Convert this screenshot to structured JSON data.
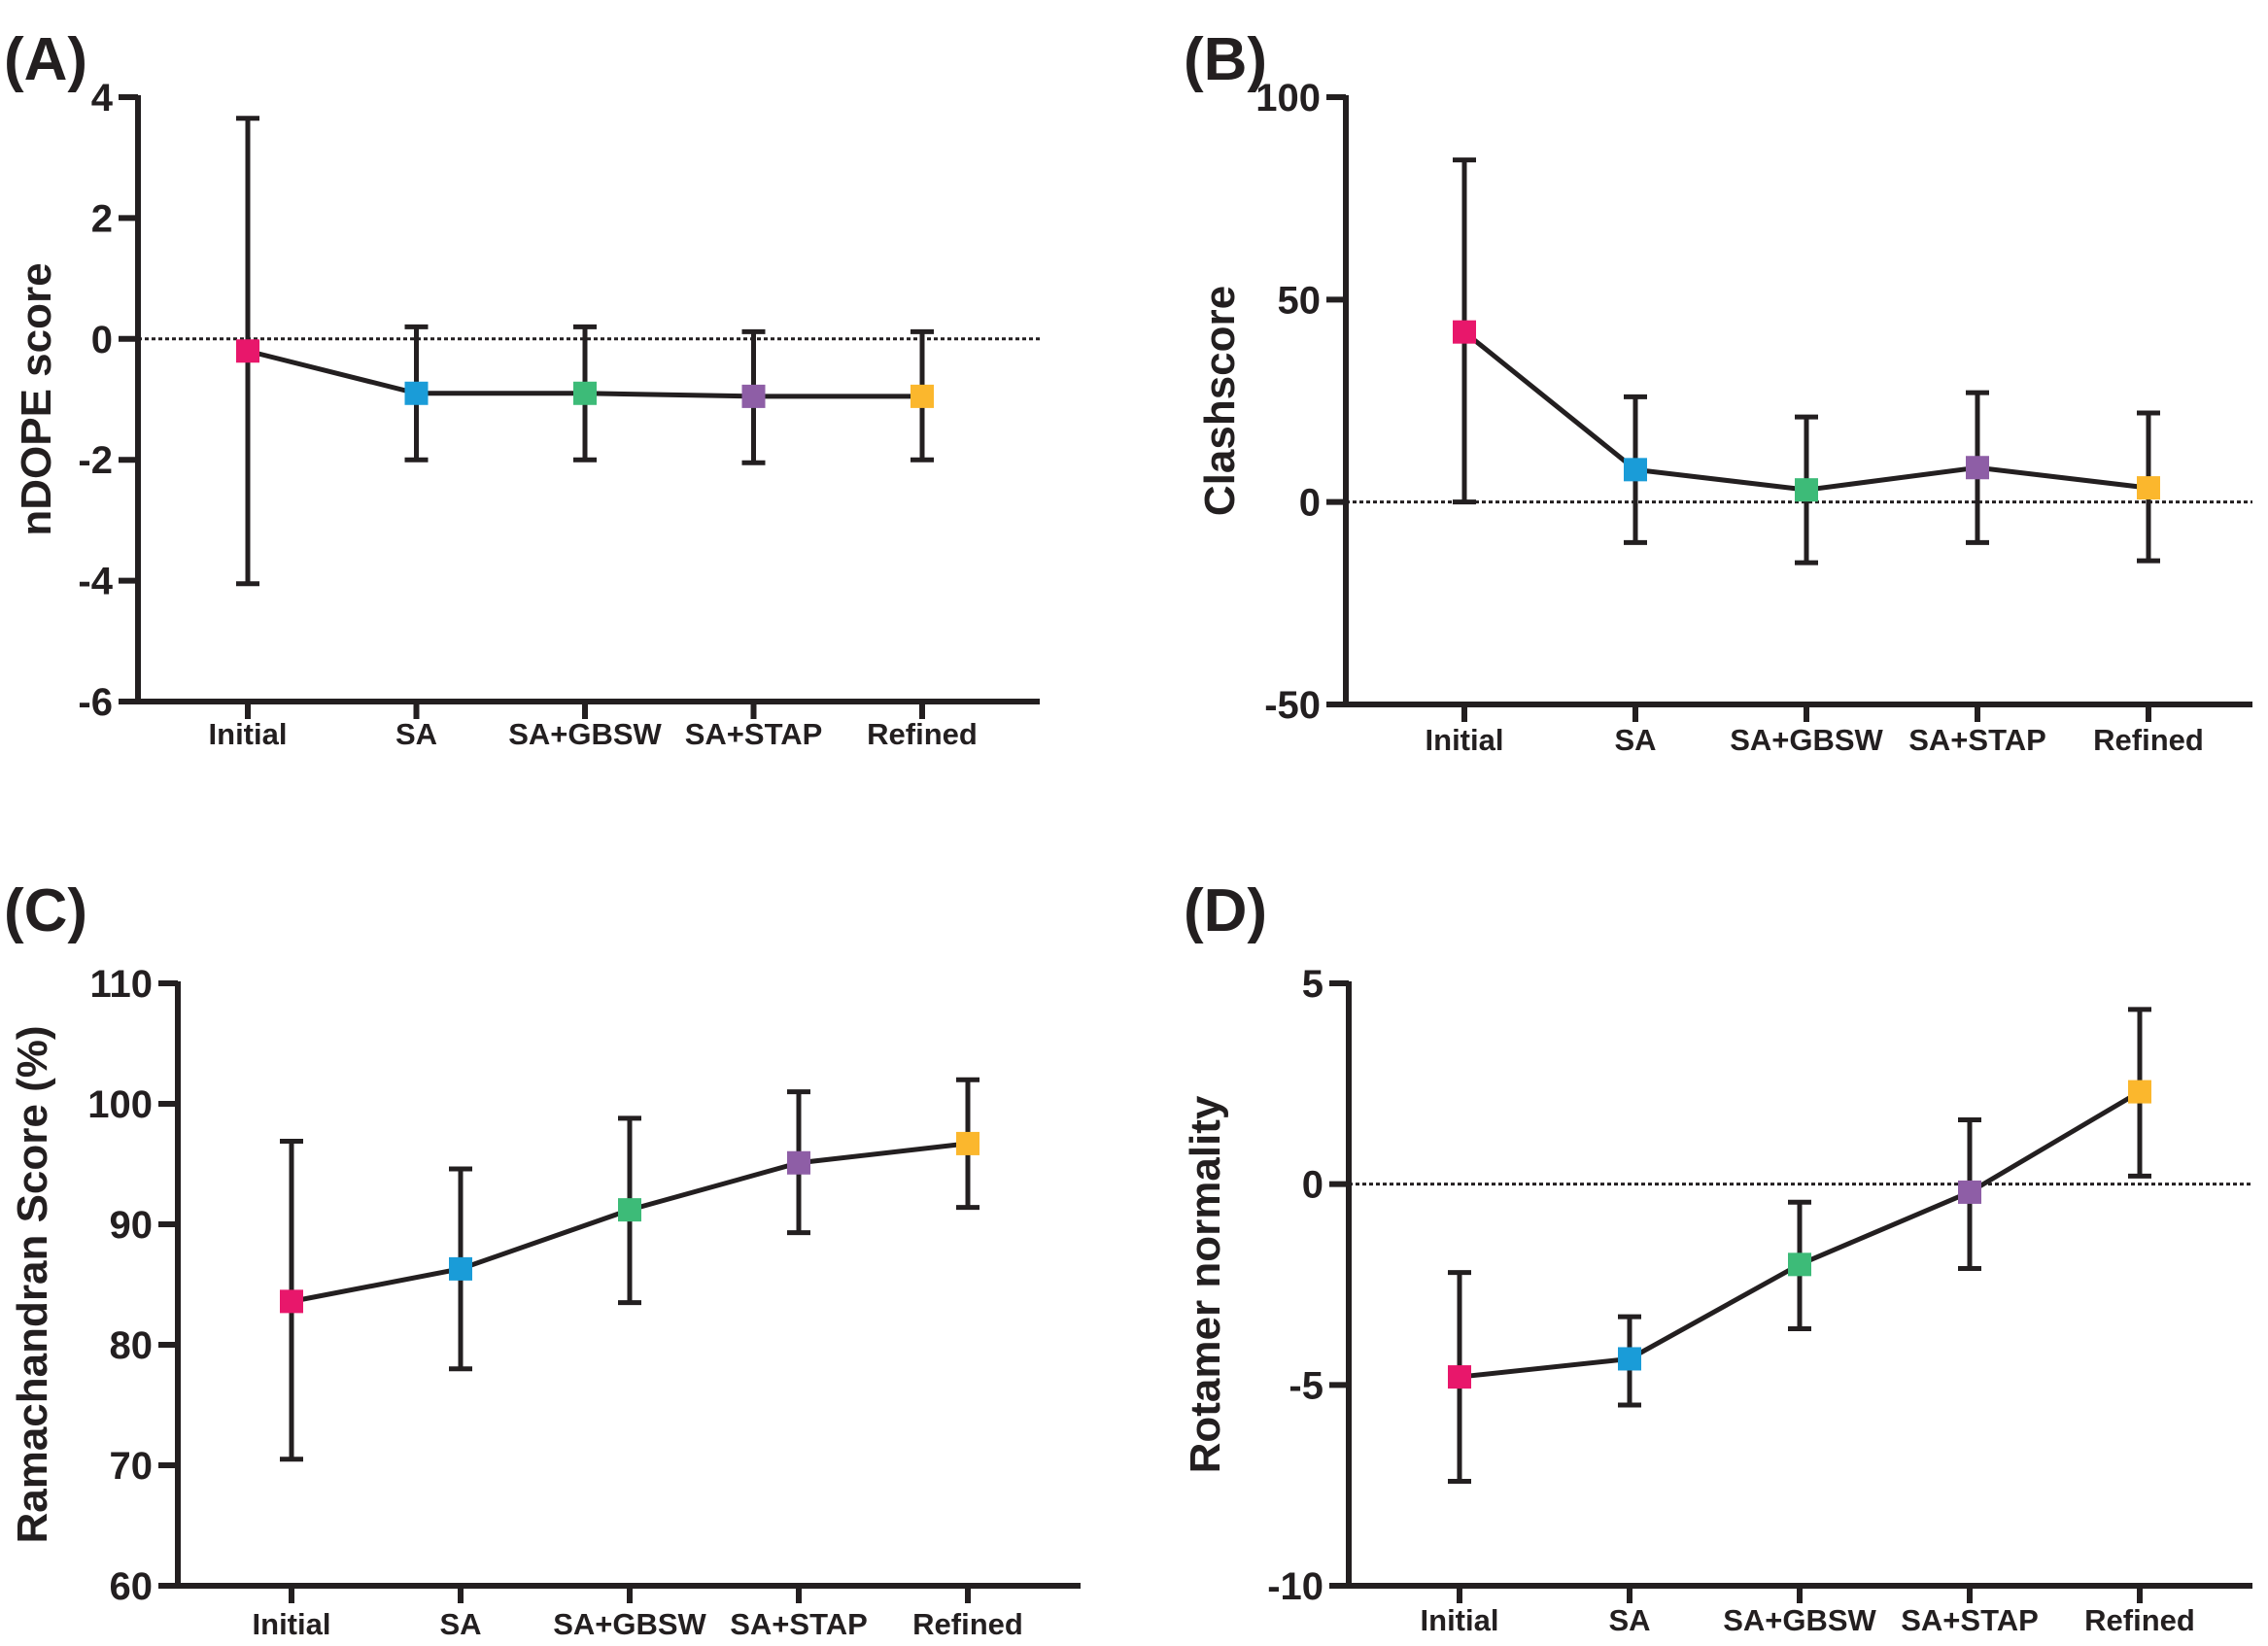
{
  "colors": {
    "axis": "#231f20",
    "Initial": "#e8176b",
    "SA": "#1a9cd8",
    "SA+GBSW": "#3dbb78",
    "SA+STAP": "#8e5ea6",
    "Refined": "#fbb72d"
  },
  "chart_data": [
    {
      "panel": "(A)",
      "type": "line",
      "categories": [
        "Initial",
        "SA",
        "SA+GBSW",
        "SA+STAP",
        "Refined"
      ],
      "ylabel": "nDOPE score",
      "ylim": [
        -6,
        4
      ],
      "yticks": [
        4,
        2,
        0,
        -2,
        -4,
        -6
      ],
      "yticklabels": [
        "4",
        "2",
        "0",
        "-2",
        "-4",
        "-6"
      ],
      "reference_line": 0,
      "values": [
        -0.2,
        -0.9,
        -0.9,
        -0.95,
        -0.95
      ],
      "error_low": [
        -4.05,
        -2.0,
        -2.0,
        -2.05,
        -2.0
      ],
      "error_high": [
        3.65,
        0.2,
        0.2,
        0.12,
        0.12
      ]
    },
    {
      "panel": "(B)",
      "type": "line",
      "categories": [
        "Initial",
        "SA",
        "SA+GBSW",
        "SA+STAP",
        "Refined"
      ],
      "ylabel": "Clashscore",
      "ylim": [
        -50,
        100
      ],
      "yticks": [
        100,
        50,
        0,
        -50
      ],
      "yticklabels": [
        "100",
        "50",
        "0",
        "-50"
      ],
      "reference_line": 0,
      "values": [
        42,
        8,
        3,
        8.5,
        3.5
      ],
      "error_low": [
        0,
        -10,
        -15,
        -10,
        -14.5
      ],
      "error_high": [
        84.5,
        26,
        21,
        27,
        22
      ]
    },
    {
      "panel": "(C)",
      "type": "line",
      "categories": [
        "Initial",
        "SA",
        "SA+GBSW",
        "SA+STAP",
        "Refined"
      ],
      "ylabel": "Ramachandran Score (%)",
      "ylim": [
        60,
        110
      ],
      "yticks": [
        110,
        100,
        90,
        80,
        70,
        60
      ],
      "yticklabels": [
        "110",
        "100",
        "90",
        "80",
        "70",
        "60"
      ],
      "values": [
        83.6,
        86.3,
        91.2,
        95.1,
        96.7
      ],
      "error_low": [
        70.5,
        78.0,
        83.5,
        89.3,
        91.4
      ],
      "error_high": [
        96.9,
        94.6,
        98.8,
        101.0,
        102.0
      ]
    },
    {
      "panel": "(D)",
      "type": "line",
      "categories": [
        "Initial",
        "SA",
        "SA+GBSW",
        "SA+STAP",
        "Refined"
      ],
      "ylabel": "Rotamer normality",
      "ylim": [
        -10,
        5
      ],
      "yticks": [
        5,
        0,
        -5,
        -10
      ],
      "yticklabels": [
        "5",
        "0",
        "-5",
        "-10"
      ],
      "reference_line": 0,
      "values": [
        -4.8,
        -4.35,
        -2.0,
        -0.2,
        2.3
      ],
      "error_low": [
        -7.4,
        -5.5,
        -3.6,
        -2.1,
        0.2
      ],
      "error_high": [
        -2.2,
        -3.3,
        -0.45,
        1.6,
        4.35
      ]
    }
  ]
}
